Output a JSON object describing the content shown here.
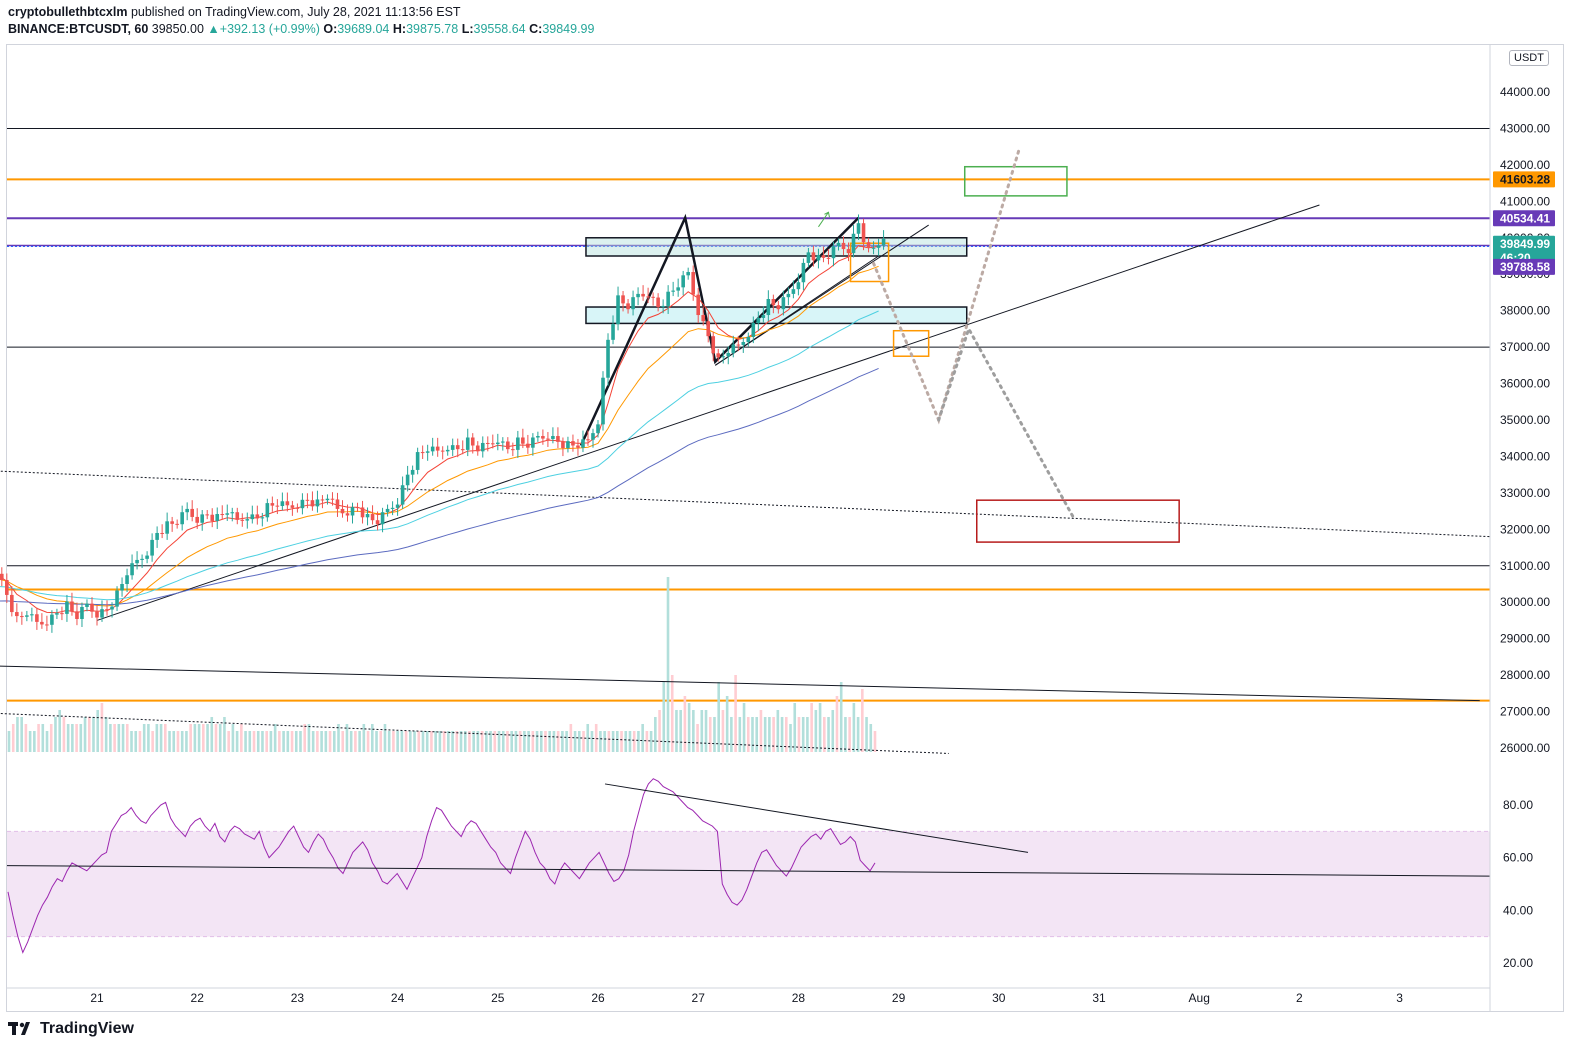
{
  "header": {
    "author": "cryptobullethbtcxlm",
    "published": "published on TradingView.com, July 28, 2021 11:13:56 EST",
    "symbol": "BINANCE:BTCUSDT, 60",
    "last": "39850.00",
    "change": "▲+392.13 (+0.99%)",
    "o_label": "O:",
    "o_value": "39689.04",
    "h_label": "H:",
    "h_value": "39875.78",
    "l_label": "L:",
    "l_value": "39558.64",
    "c_label": "C:",
    "c_value": "39849.99"
  },
  "currency_label": "USDT",
  "footer": {
    "brand": "TradingView"
  },
  "colors": {
    "up": "#26a69a",
    "down": "#ef5350",
    "orange": "#ff9800",
    "purple": "#673ab7",
    "rsi": "#9c27b0",
    "rsi_band": "#e1bee7",
    "ema_red": "#f44336",
    "ema_orange": "#ff9800",
    "ema_cyan": "#4dd0e1",
    "ema_blue": "#5c6bc0"
  },
  "chart_data": {
    "type": "candlestick",
    "symbol": "BINANCE:BTCUSDT",
    "interval": "60",
    "price_axis": {
      "ylim": [
        25500,
        45200
      ],
      "ticks": [
        "44000.00",
        "43000.00",
        "42000.00",
        "41000.00",
        "40000.00",
        "39000.00",
        "38000.00",
        "37000.00",
        "36000.00",
        "35000.00",
        "34000.00",
        "33000.00",
        "32000.00",
        "31000.00",
        "30000.00",
        "29000.00",
        "28000.00",
        "27000.00",
        "26000.00"
      ],
      "tick_values": [
        44000,
        43000,
        42000,
        41000,
        40000,
        39000,
        38000,
        37000,
        36000,
        35000,
        34000,
        33000,
        32000,
        31000,
        30000,
        29000,
        28000,
        27000,
        26000
      ]
    },
    "time_axis": {
      "labels": [
        "21",
        "22",
        "23",
        "24",
        "25",
        "26",
        "27",
        "28",
        "29",
        "30",
        "31",
        "Aug",
        "2",
        "3"
      ]
    },
    "price_tags": [
      {
        "value": "41603.28",
        "color": "#ff9800",
        "text_color": "#131722"
      },
      {
        "value": "40534.41",
        "color": "#673ab7",
        "text_color": "#ffffff"
      },
      {
        "value": "39849.99",
        "sub": "46:20",
        "color": "#26a69a",
        "text_color": "#ffffff"
      },
      {
        "value": "39788.58",
        "color": "#673ab7",
        "text_color": "#ffffff"
      }
    ],
    "price_path": [
      [
        20.0,
        30900
      ],
      [
        20.1,
        30200
      ],
      [
        20.2,
        29500
      ],
      [
        20.3,
        29700
      ],
      [
        20.4,
        29400
      ],
      [
        20.5,
        29500
      ],
      [
        20.6,
        29700
      ],
      [
        20.7,
        29900
      ],
      [
        20.8,
        29600
      ],
      [
        20.9,
        29900
      ],
      [
        21.0,
        29700
      ],
      [
        21.1,
        29800
      ],
      [
        21.2,
        30200
      ],
      [
        21.3,
        30800
      ],
      [
        21.4,
        31100
      ],
      [
        21.5,
        31400
      ],
      [
        21.6,
        31900
      ],
      [
        21.7,
        32100
      ],
      [
        21.8,
        32200
      ],
      [
        21.9,
        32500
      ],
      [
        22.0,
        32300
      ],
      [
        22.1,
        32400
      ],
      [
        22.2,
        32300
      ],
      [
        22.3,
        32500
      ],
      [
        22.4,
        32200
      ],
      [
        22.5,
        32400
      ],
      [
        22.6,
        32300
      ],
      [
        22.7,
        32600
      ],
      [
        22.8,
        32700
      ],
      [
        22.9,
        32600
      ],
      [
        23.0,
        32700
      ],
      [
        23.1,
        32800
      ],
      [
        23.2,
        32700
      ],
      [
        23.3,
        32900
      ],
      [
        23.4,
        32500
      ],
      [
        23.5,
        32500
      ],
      [
        23.6,
        32600
      ],
      [
        23.7,
        32300
      ],
      [
        23.8,
        32200
      ],
      [
        23.9,
        32500
      ],
      [
        24.0,
        32800
      ],
      [
        24.1,
        33500
      ],
      [
        24.2,
        34000
      ],
      [
        24.3,
        34200
      ],
      [
        24.4,
        34100
      ],
      [
        24.5,
        34300
      ],
      [
        24.6,
        34200
      ],
      [
        24.7,
        34400
      ],
      [
        24.8,
        34200
      ],
      [
        24.9,
        34300
      ],
      [
        25.0,
        34500
      ],
      [
        25.1,
        34200
      ],
      [
        25.2,
        34400
      ],
      [
        25.3,
        34300
      ],
      [
        25.4,
        34500
      ],
      [
        25.5,
        34600
      ],
      [
        25.6,
        34400
      ],
      [
        25.7,
        34300
      ],
      [
        25.8,
        34300
      ],
      [
        25.9,
        34400
      ],
      [
        26.0,
        35000
      ],
      [
        26.1,
        37200
      ],
      [
        26.2,
        38300
      ],
      [
        26.3,
        38100
      ],
      [
        26.4,
        38400
      ],
      [
        26.5,
        38500
      ],
      [
        26.6,
        38100
      ],
      [
        26.7,
        38400
      ],
      [
        26.8,
        38700
      ],
      [
        26.9,
        39000
      ],
      [
        27.0,
        38000
      ],
      [
        27.1,
        37300
      ],
      [
        27.2,
        36600
      ],
      [
        27.3,
        36900
      ],
      [
        27.4,
        37000
      ],
      [
        27.5,
        37400
      ],
      [
        27.6,
        37800
      ],
      [
        27.7,
        38200
      ],
      [
        27.8,
        38100
      ],
      [
        27.9,
        38400
      ],
      [
        28.0,
        38900
      ],
      [
        28.1,
        39600
      ],
      [
        28.2,
        39400
      ],
      [
        28.3,
        39500
      ],
      [
        28.4,
        39800
      ],
      [
        28.5,
        39700
      ],
      [
        28.6,
        40400
      ],
      [
        28.7,
        39600
      ],
      [
        28.8,
        39850
      ]
    ],
    "volume": [
      3,
      4,
      5,
      5,
      4,
      3,
      3,
      4,
      4,
      3,
      4,
      5,
      6,
      5,
      4,
      4,
      4,
      4,
      5,
      5,
      5,
      6,
      7,
      5,
      4,
      4,
      4,
      4,
      4,
      3,
      3,
      3,
      4,
      4,
      3,
      4,
      4,
      4,
      3,
      3,
      3,
      3,
      3,
      4,
      4,
      4,
      4,
      4,
      5,
      4,
      4,
      5,
      3,
      4,
      3,
      4,
      3,
      3,
      3,
      3,
      3,
      3,
      3,
      4,
      3,
      3,
      3,
      3,
      3,
      3,
      4,
      4,
      3,
      3,
      3,
      3,
      3,
      3,
      4,
      3,
      4,
      3,
      3,
      3,
      4,
      3,
      4,
      3,
      3,
      4,
      3,
      3,
      3,
      3,
      3,
      3,
      3,
      3,
      3,
      3,
      3,
      3,
      3,
      3,
      3,
      3,
      3,
      3,
      3,
      3,
      3,
      3,
      3,
      3,
      3,
      3,
      3,
      3,
      3,
      3,
      3,
      3,
      3,
      3,
      3,
      3,
      3,
      3,
      3,
      3,
      3,
      3,
      3,
      4,
      3,
      3,
      3,
      4,
      3,
      4,
      3,
      3,
      3,
      3,
      3,
      3,
      3,
      3,
      3,
      3,
      4,
      3,
      3,
      5,
      6,
      10,
      25,
      11,
      6,
      6,
      8,
      7,
      6,
      4,
      6,
      6,
      5,
      5,
      10,
      6,
      8,
      5,
      11,
      5,
      7,
      5,
      5,
      5,
      6,
      5,
      5,
      5,
      6,
      5,
      5,
      4,
      7,
      5,
      5,
      5,
      7,
      6,
      7,
      5,
      5,
      6,
      8,
      10,
      5,
      5,
      7,
      5,
      9,
      5,
      4,
      3
    ],
    "rsi": {
      "ylim": [
        0,
        100
      ],
      "ticks": [
        "80.00",
        "60.00",
        "40.00",
        "20.00"
      ],
      "tick_values": [
        80,
        60,
        40,
        20
      ],
      "band": [
        30,
        70
      ],
      "values": [
        47,
        38,
        30,
        24,
        28,
        33,
        38,
        42,
        45,
        49,
        52,
        51,
        55,
        58,
        57,
        56,
        55,
        57,
        59,
        61,
        62,
        70,
        73,
        76,
        77,
        79,
        76,
        74,
        73,
        76,
        78,
        80,
        81,
        75,
        72,
        70,
        68,
        72,
        74,
        75,
        72,
        70,
        73,
        68,
        66,
        70,
        72,
        71,
        69,
        68,
        67,
        70,
        64,
        60,
        62,
        64,
        67,
        70,
        72,
        68,
        64,
        62,
        66,
        69,
        67,
        63,
        60,
        56,
        54,
        58,
        62,
        64,
        66,
        63,
        58,
        55,
        51,
        50,
        52,
        54,
        51,
        48,
        52,
        56,
        60,
        68,
        74,
        79,
        78,
        75,
        72,
        70,
        68,
        72,
        74,
        73,
        70,
        67,
        64,
        62,
        58,
        56,
        54,
        60,
        65,
        70,
        67,
        62,
        58,
        56,
        52,
        50,
        55,
        58,
        56,
        54,
        52,
        55,
        58,
        60,
        62,
        58,
        54,
        51,
        52,
        55,
        61,
        70,
        77,
        84,
        88,
        90,
        89,
        87,
        86,
        85,
        83,
        81,
        79,
        78,
        76,
        74,
        73,
        72,
        70,
        50,
        46,
        43,
        42,
        44,
        48,
        53,
        58,
        62,
        63,
        60,
        57,
        55,
        53,
        56,
        60,
        64,
        66,
        68,
        69,
        67,
        70,
        71,
        68,
        65,
        66,
        68,
        66,
        59,
        57,
        55,
        58
      ]
    }
  }
}
